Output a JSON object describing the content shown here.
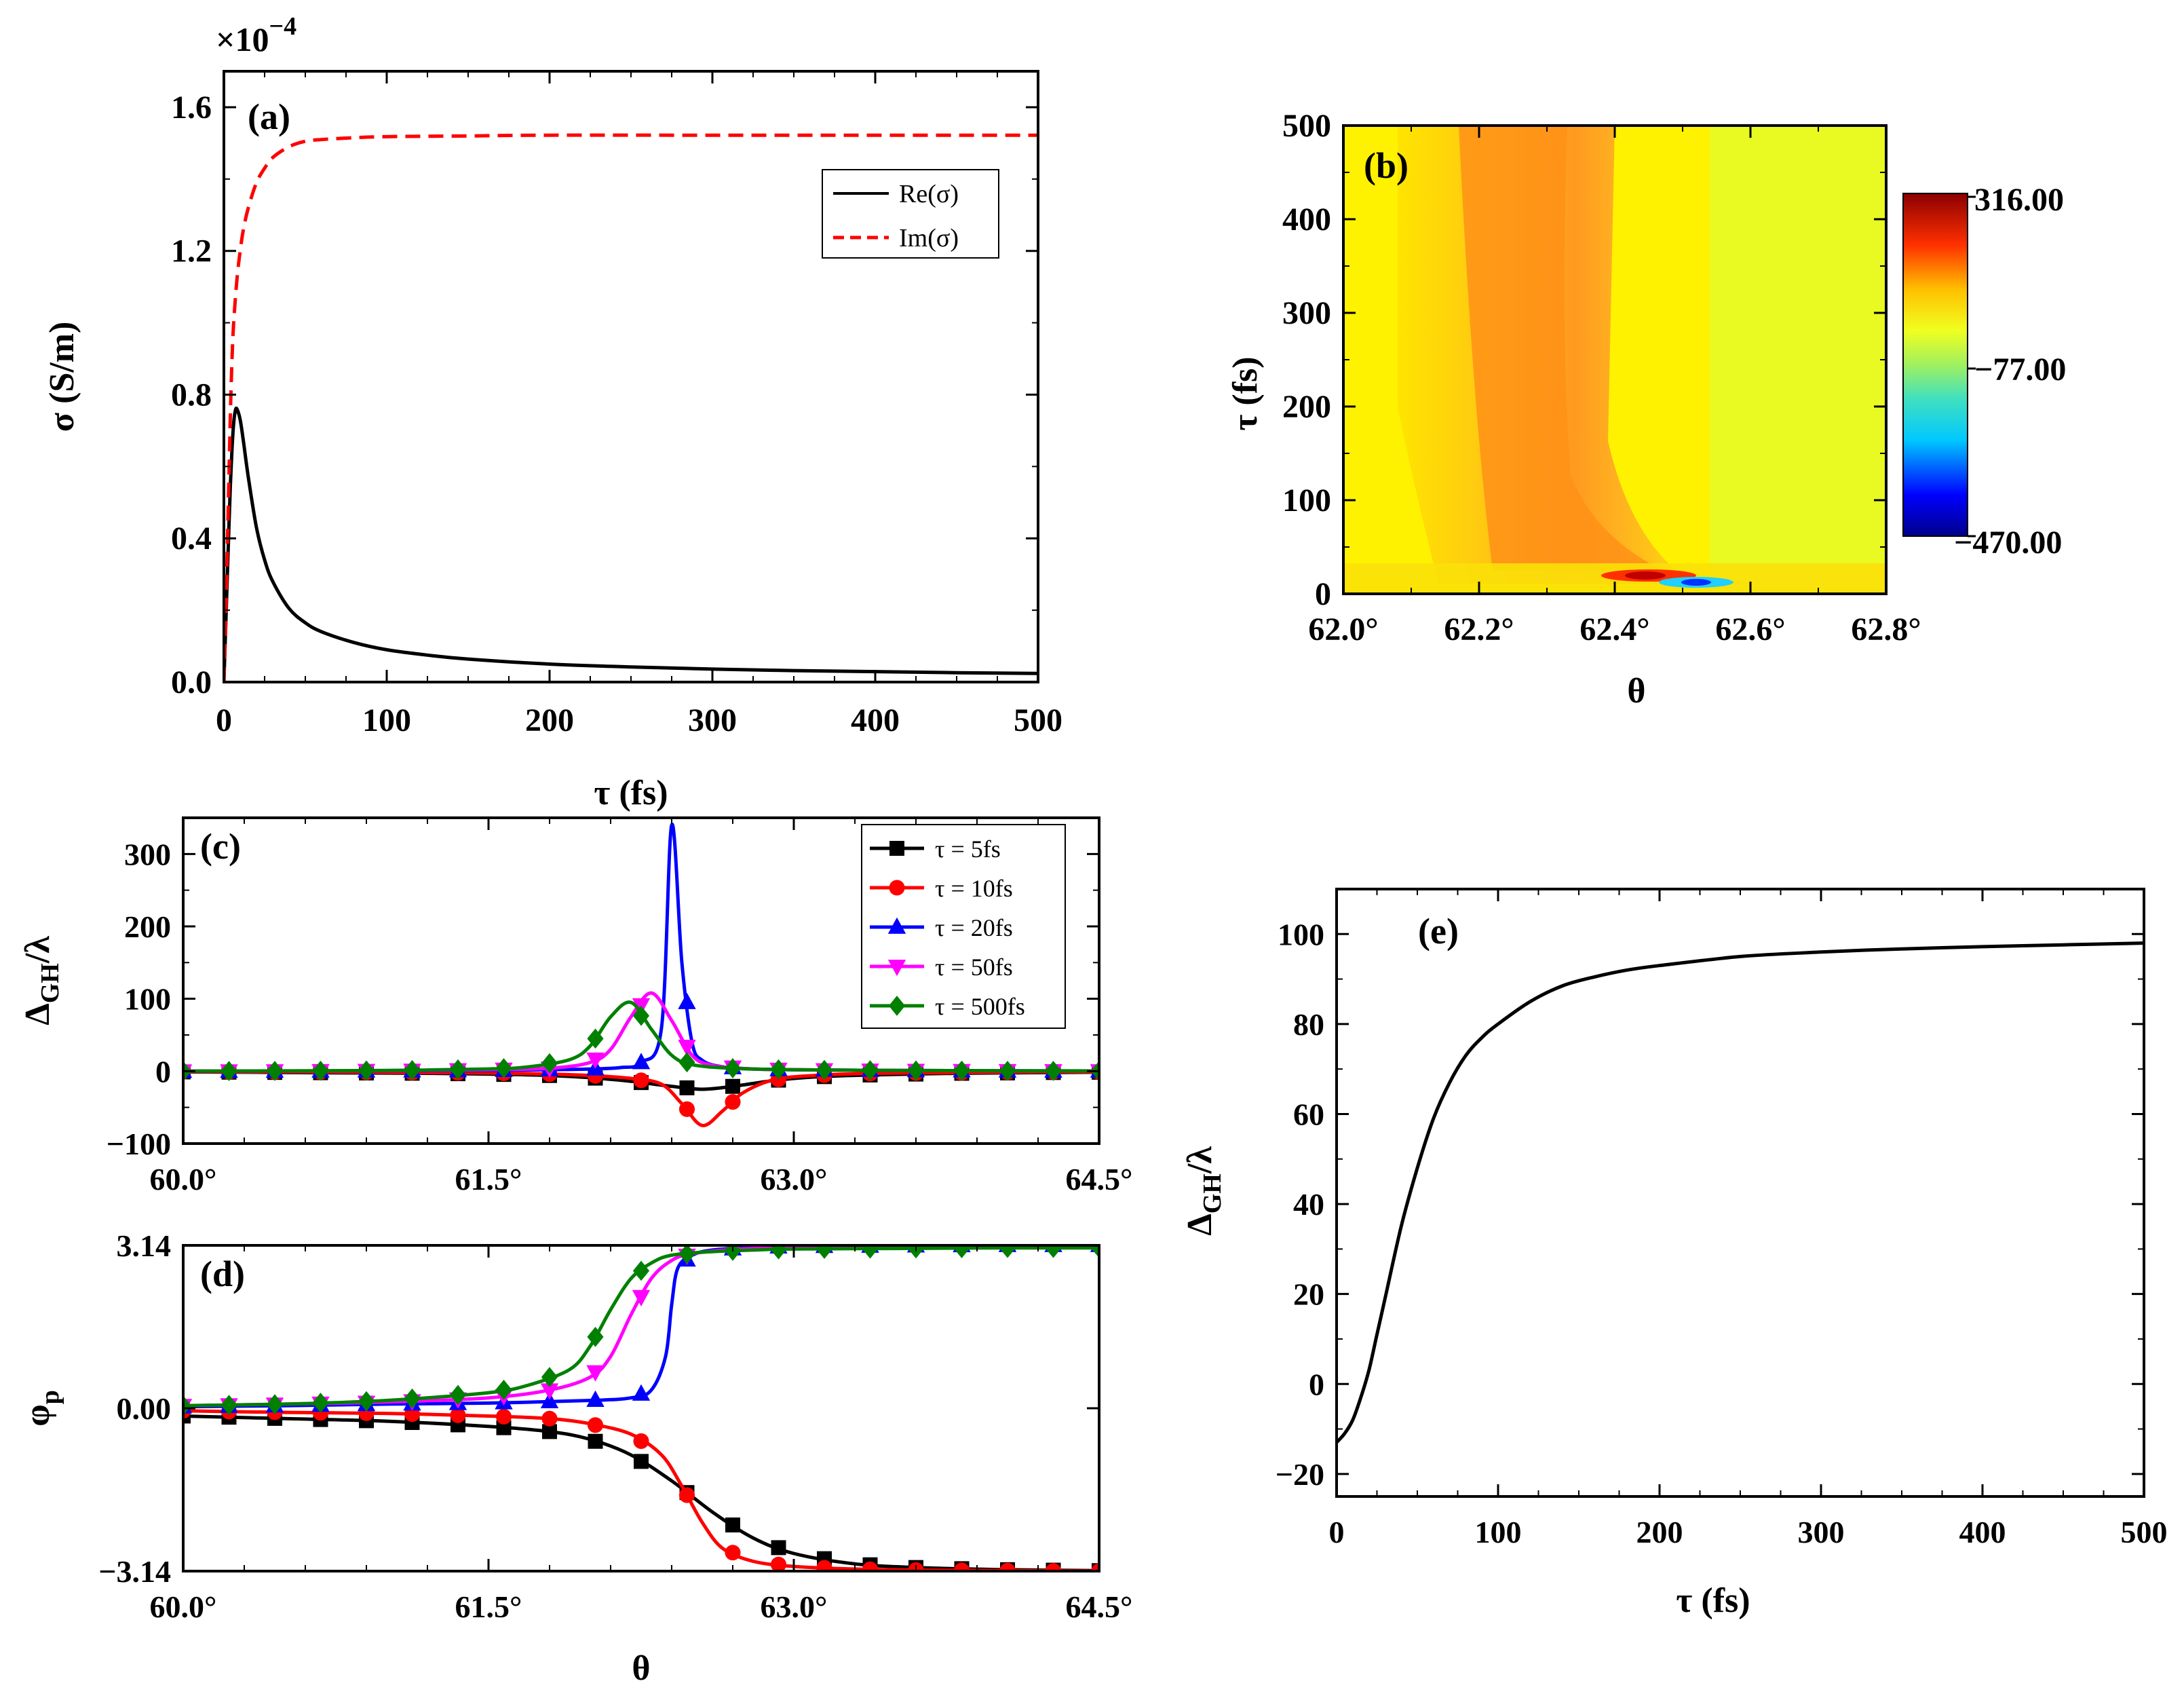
{
  "chart_data": [
    {
      "panel": "(a)",
      "type": "line",
      "xlabel": "τ (fs)",
      "ylabel": "σ (S/m)",
      "multiplier": "×10",
      "multiplier_exp": "−4",
      "xlim": [
        0,
        500
      ],
      "ylim": [
        0,
        1.7
      ],
      "xticks": [
        0,
        100,
        200,
        300,
        400,
        500
      ],
      "xtick_labels": [
        "0",
        "100",
        "200",
        "300",
        "400",
        "500"
      ],
      "yticks": [
        0.0,
        0.4,
        0.8,
        1.2,
        1.6
      ],
      "ytick_labels": [
        "0.0",
        "0.4",
        "0.8",
        "1.2",
        "1.6"
      ],
      "legend_position": "top-right",
      "series": [
        {
          "name": "Re(σ)",
          "style": "solid",
          "color": "#000000",
          "x": [
            0,
            1,
            2,
            3,
            4,
            5,
            6,
            7,
            8,
            10,
            12,
            15,
            20,
            25,
            30,
            40,
            50,
            60,
            80,
            100,
            125,
            150,
            200,
            250,
            300,
            350,
            400,
            450,
            500
          ],
          "y": [
            0,
            0.14,
            0.28,
            0.42,
            0.55,
            0.65,
            0.72,
            0.755,
            0.76,
            0.73,
            0.67,
            0.57,
            0.43,
            0.34,
            0.28,
            0.205,
            0.165,
            0.14,
            0.11,
            0.09,
            0.075,
            0.064,
            0.05,
            0.042,
            0.036,
            0.032,
            0.029,
            0.026,
            0.024
          ]
        },
        {
          "name": "Im(σ)",
          "style": "dashed",
          "color": "#ff0000",
          "x": [
            0,
            1,
            2,
            3,
            4,
            5,
            6,
            8,
            10,
            12,
            15,
            20,
            25,
            30,
            40,
            50,
            60,
            80,
            100,
            150,
            200,
            300,
            400,
            500
          ],
          "y": [
            0,
            0.15,
            0.35,
            0.55,
            0.75,
            0.9,
            1.0,
            1.12,
            1.2,
            1.26,
            1.32,
            1.39,
            1.43,
            1.46,
            1.49,
            1.505,
            1.51,
            1.515,
            1.518,
            1.52,
            1.522,
            1.522,
            1.522,
            1.522
          ]
        }
      ]
    },
    {
      "panel": "(b)",
      "type": "heatmap",
      "xlabel": "θ",
      "ylabel": "τ (fs)",
      "xlim": [
        62.0,
        62.8
      ],
      "ylim": [
        0,
        500
      ],
      "xticks": [
        62.0,
        62.2,
        62.4,
        62.6,
        62.8
      ],
      "xtick_labels": [
        "62.0°",
        "62.2°",
        "62.4°",
        "62.6°",
        "62.8°"
      ],
      "yticks": [
        0,
        100,
        200,
        300,
        400,
        500
      ],
      "ytick_labels": [
        "0",
        "100",
        "200",
        "300",
        "400",
        "500"
      ],
      "colorbar": {
        "max": 316,
        "mid": -77,
        "min": -470,
        "labels": [
          "316.00",
          "−77.00",
          "−470.00"
        ]
      },
      "features": {
        "ridge_theta": 62.22,
        "ridge_value": 100,
        "peak_theta": 62.42,
        "peak_tau": 20,
        "peak_value": 316,
        "trough_theta": 62.5,
        "trough_tau": 12,
        "trough_value": -470,
        "background_value": 0
      }
    },
    {
      "panel": "(c)",
      "type": "line",
      "xlabel": "",
      "ylabel": "Δ",
      "ylabel_sub": "GH",
      "ylabel_suffix": "/λ",
      "xlim": [
        60.0,
        64.5
      ],
      "ylim": [
        -100,
        350
      ],
      "xticks": [
        60.0,
        61.5,
        63.0,
        64.5
      ],
      "xtick_labels": [
        "60.0°",
        "61.5°",
        "63.0°",
        "64.5°"
      ],
      "yticks": [
        -100,
        0,
        100,
        200,
        300
      ],
      "ytick_labels": [
        "−100",
        "0",
        "100",
        "200",
        "300"
      ],
      "legend_position": "top-right",
      "series": [
        {
          "name": "τ = 5fs",
          "color": "#000000",
          "marker": "square",
          "x": [
            60.0,
            60.3,
            60.6,
            60.9,
            61.2,
            61.5,
            61.8,
            62.0,
            62.2,
            62.4,
            62.55,
            62.7,
            62.9,
            63.1,
            63.4,
            63.8,
            64.2,
            64.5
          ],
          "y": [
            -1,
            -1.5,
            -2,
            -2.5,
            -3,
            -4,
            -6,
            -9,
            -14,
            -21,
            -25,
            -21,
            -13,
            -8,
            -5,
            -3,
            -2,
            -1.5
          ]
        },
        {
          "name": "τ = 10fs",
          "color": "#ff0000",
          "marker": "circle",
          "x": [
            60.0,
            60.3,
            60.6,
            60.9,
            61.2,
            61.5,
            61.8,
            62.0,
            62.2,
            62.35,
            62.45,
            62.55,
            62.65,
            62.75,
            62.9,
            63.1,
            63.4,
            63.8,
            64.2,
            64.5
          ],
          "y": [
            -0.5,
            -1,
            -1,
            -1.5,
            -2,
            -2.5,
            -4,
            -6,
            -10,
            -18,
            -45,
            -75,
            -55,
            -30,
            -12,
            -6,
            -3,
            -2,
            -1,
            -1
          ]
        },
        {
          "name": "τ = 20fs",
          "color": "#0000ff",
          "marker": "triangle-up",
          "x": [
            60.0,
            60.5,
            61.0,
            61.5,
            61.8,
            62.0,
            62.15,
            62.25,
            62.35,
            62.4,
            62.45,
            62.5,
            62.55,
            62.65,
            62.8,
            63.0,
            63.5,
            64.0,
            64.5
          ],
          "y": [
            0,
            0.2,
            0.5,
            1,
            2,
            3,
            5,
            12,
            60,
            340,
            150,
            40,
            15,
            6,
            3,
            2,
            1,
            0.5,
            0.3
          ]
        },
        {
          "name": "τ = 50fs",
          "color": "#ff00ff",
          "marker": "triangle-down",
          "x": [
            60.0,
            60.5,
            61.0,
            61.5,
            61.8,
            62.0,
            62.1,
            62.2,
            62.3,
            62.4,
            62.5,
            62.6,
            62.8,
            63.0,
            63.5,
            64.0,
            64.5
          ],
          "y": [
            0,
            0.3,
            0.8,
            2,
            4,
            12,
            30,
            75,
            108,
            70,
            22,
            8,
            3,
            2,
            1,
            0.5,
            0.3
          ]
        },
        {
          "name": "τ = 500fs",
          "color": "#008000",
          "marker": "diamond",
          "x": [
            60.0,
            60.5,
            61.0,
            61.5,
            61.7,
            61.9,
            62.0,
            62.1,
            62.2,
            62.3,
            62.4,
            62.5,
            62.7,
            63.0,
            63.5,
            64.0,
            64.5
          ],
          "y": [
            0,
            0.4,
            1,
            3,
            6,
            16,
            35,
            75,
            95,
            58,
            22,
            9,
            4,
            2,
            1,
            0.5,
            0.3
          ]
        }
      ]
    },
    {
      "panel": "(d)",
      "type": "line",
      "xlabel": "θ",
      "ylabel": "φ",
      "ylabel_sub": "p",
      "xlim": [
        60.0,
        64.5
      ],
      "ylim": [
        -3.14,
        3.14
      ],
      "xticks": [
        60.0,
        61.5,
        63.0,
        64.5
      ],
      "xtick_labels": [
        "60.0°",
        "61.5°",
        "63.0°",
        "64.5°"
      ],
      "yticks": [
        -3.14,
        0.0,
        3.14
      ],
      "ytick_labels": [
        "−3.14",
        "0.00",
        "3.14"
      ],
      "series": [
        {
          "name": "τ = 5fs",
          "color": "#000000",
          "marker": "square",
          "x": [
            60.0,
            60.5,
            61.0,
            61.5,
            61.8,
            62.0,
            62.2,
            62.4,
            62.6,
            62.8,
            63.0,
            63.3,
            63.6,
            64.0,
            64.5
          ],
          "y": [
            -0.15,
            -0.2,
            -0.25,
            -0.35,
            -0.45,
            -0.6,
            -0.9,
            -1.4,
            -2.0,
            -2.5,
            -2.8,
            -3.0,
            -3.07,
            -3.11,
            -3.13
          ]
        },
        {
          "name": "τ = 10fs",
          "color": "#ff0000",
          "marker": "circle",
          "x": [
            60.0,
            60.5,
            61.0,
            61.5,
            61.8,
            62.0,
            62.2,
            62.35,
            62.45,
            62.55,
            62.65,
            62.8,
            63.0,
            63.3,
            63.6,
            64.0,
            64.5
          ],
          "y": [
            -0.05,
            -0.08,
            -0.1,
            -0.15,
            -0.2,
            -0.3,
            -0.5,
            -0.9,
            -1.5,
            -2.2,
            -2.7,
            -2.95,
            -3.05,
            -3.1,
            -3.12,
            -3.13,
            -3.14
          ]
        },
        {
          "name": "τ = 20fs",
          "color": "#0000ff",
          "marker": "triangle-up",
          "x": [
            60.0,
            60.5,
            61.0,
            61.5,
            62.0,
            62.2,
            62.3,
            62.37,
            62.4,
            62.43,
            62.5,
            62.6,
            62.8,
            63.0,
            63.5,
            64.0,
            64.5
          ],
          "y": [
            0.03,
            0.05,
            0.08,
            0.1,
            0.15,
            0.2,
            0.35,
            1.0,
            2.0,
            2.7,
            2.95,
            3.05,
            3.1,
            3.12,
            3.13,
            3.14,
            3.14
          ]
        },
        {
          "name": "τ = 50fs",
          "color": "#ff00ff",
          "marker": "triangle-down",
          "x": [
            60.0,
            60.5,
            61.0,
            61.5,
            61.8,
            62.0,
            62.1,
            62.2,
            62.3,
            62.4,
            62.5,
            62.7,
            63.0,
            63.5,
            64.0,
            64.5
          ],
          "y": [
            0.05,
            0.08,
            0.12,
            0.2,
            0.35,
            0.6,
            1.0,
            1.8,
            2.5,
            2.85,
            2.98,
            3.06,
            3.1,
            3.12,
            3.13,
            3.14
          ]
        },
        {
          "name": "τ = 500fs",
          "color": "#008000",
          "marker": "diamond",
          "x": [
            60.0,
            60.5,
            61.0,
            61.5,
            61.7,
            61.9,
            62.0,
            62.1,
            62.2,
            62.3,
            62.4,
            62.6,
            62.8,
            63.0,
            63.5,
            64.0,
            64.5
          ],
          "y": [
            0.05,
            0.08,
            0.15,
            0.3,
            0.45,
            0.75,
            1.2,
            1.9,
            2.5,
            2.8,
            2.95,
            3.02,
            3.05,
            3.07,
            3.08,
            3.09,
            3.09
          ]
        }
      ]
    },
    {
      "panel": "(e)",
      "type": "line",
      "xlabel": "τ (fs)",
      "ylabel": "Δ",
      "ylabel_sub": "GH",
      "ylabel_suffix": "/λ",
      "xlim": [
        0,
        500
      ],
      "ylim": [
        -25,
        110
      ],
      "xticks": [
        0,
        100,
        200,
        300,
        400,
        500
      ],
      "xtick_labels": [
        "0",
        "100",
        "200",
        "300",
        "400",
        "500"
      ],
      "yticks": [
        -20,
        0,
        20,
        40,
        60,
        80,
        100
      ],
      "ytick_labels": [
        "−20",
        "0",
        "20",
        "40",
        "60",
        "80",
        "100"
      ],
      "series": [
        {
          "name": "Δ_GH/λ",
          "color": "#000000",
          "x": [
            0,
            5,
            10,
            15,
            20,
            25,
            30,
            40,
            50,
            60,
            70,
            80,
            90,
            100,
            120,
            140,
            160,
            180,
            200,
            250,
            300,
            350,
            400,
            450,
            500
          ],
          "y": [
            -13,
            -11,
            -8,
            -3,
            3,
            11,
            19,
            35,
            48,
            59,
            67,
            73,
            77,
            80,
            85,
            88.5,
            90.5,
            92,
            93,
            95,
            96,
            96.7,
            97.2,
            97.6,
            98
          ]
        }
      ]
    }
  ]
}
